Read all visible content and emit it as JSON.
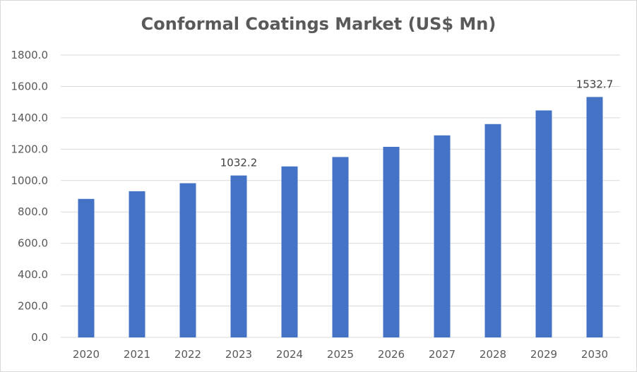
{
  "chart_data": {
    "type": "bar",
    "title": "Conformal Coatings Market (US$ Mn)",
    "xlabel": "",
    "ylabel": "",
    "categories": [
      "2020",
      "2021",
      "2022",
      "2023",
      "2024",
      "2025",
      "2026",
      "2027",
      "2028",
      "2029",
      "2030"
    ],
    "values": [
      883.0,
      932.0,
      983.0,
      1032.2,
      1090.0,
      1150.0,
      1215.0,
      1288.0,
      1360.0,
      1447.0,
      1532.7
    ],
    "data_labels": [
      {
        "category": "2023",
        "text": "1032.2"
      },
      {
        "category": "2030",
        "text": "1532.7"
      }
    ],
    "ylim": [
      0,
      1800
    ],
    "y_ticks": [
      "0.0",
      "200.0",
      "400.0",
      "600.0",
      "800.0",
      "1000.0",
      "1200.0",
      "1400.0",
      "1600.0",
      "1800.0"
    ],
    "grid": true,
    "legend": "none",
    "colors": {
      "bar": "#4472C4",
      "grid": "#d9d9d9",
      "text": "#595959"
    }
  }
}
